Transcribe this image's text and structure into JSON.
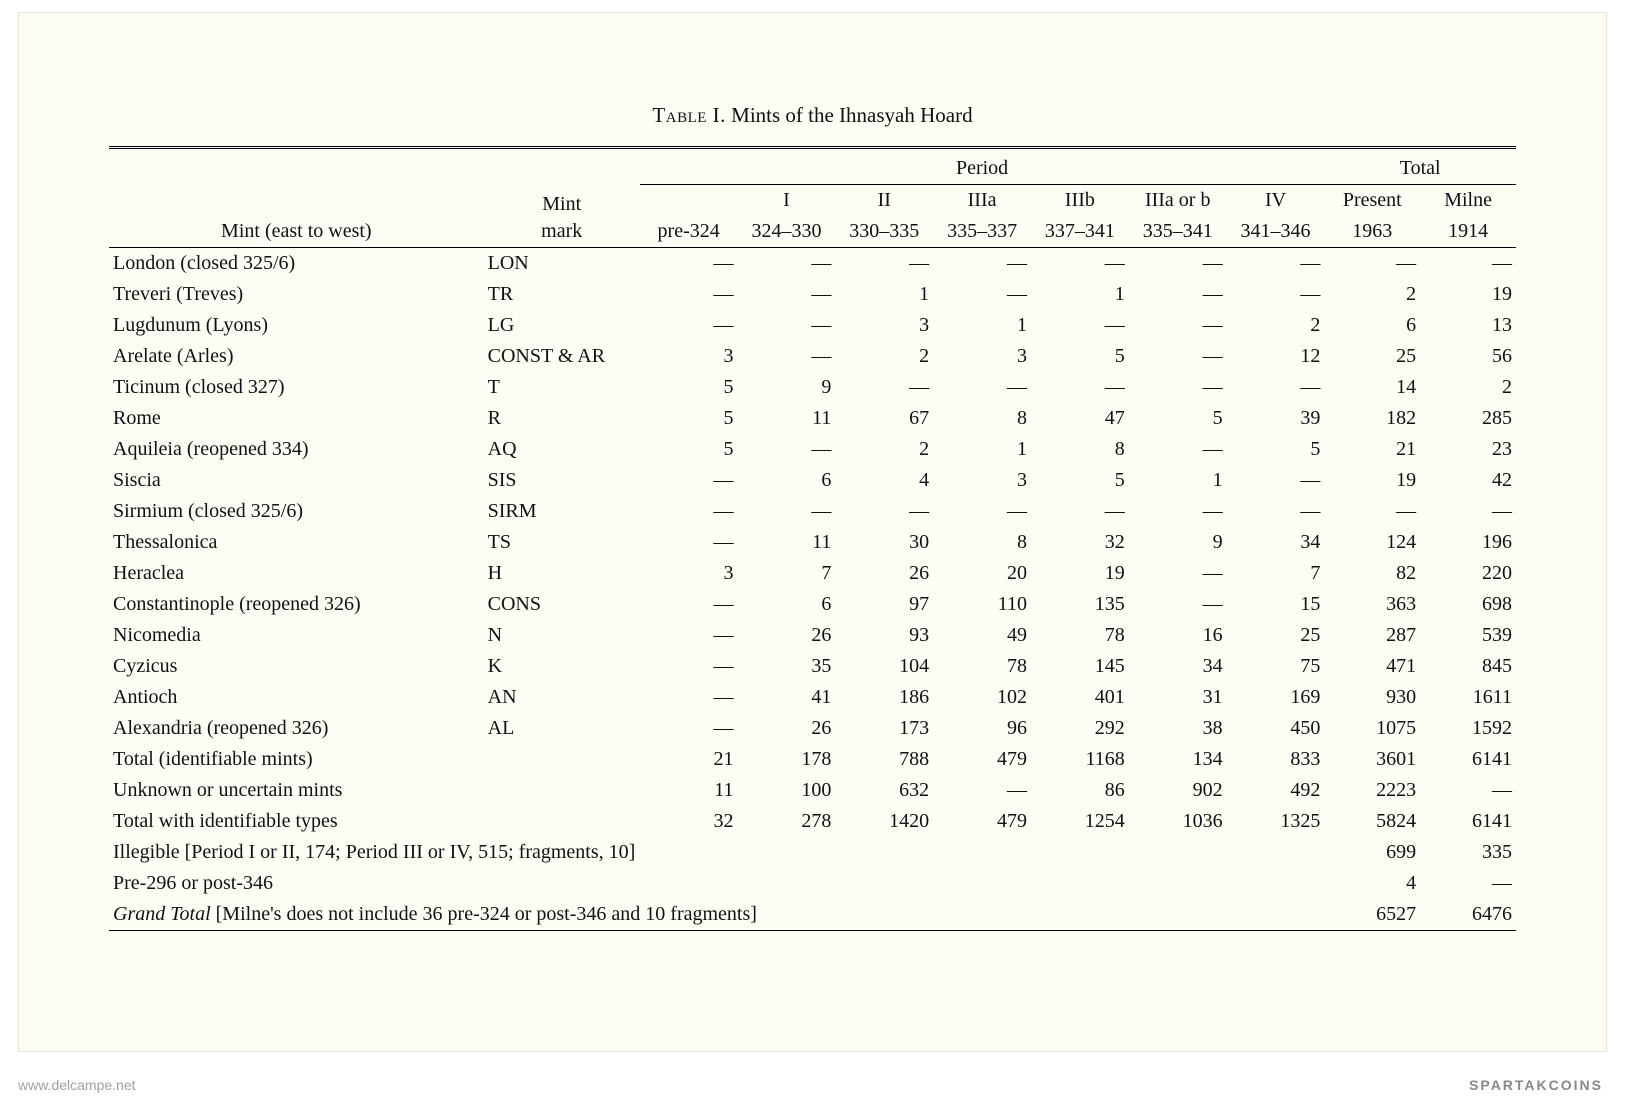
{
  "title_prefix": "Table I.",
  "title_rest": " Mints of the Ihnasyah Hoard",
  "header": {
    "mint_label": "Mint (east to west)",
    "mark_label_1": "Mint",
    "mark_label_2": "mark",
    "period_label": "Period",
    "total_label": "Total",
    "periods": {
      "p0": {
        "top": "",
        "bot": "pre-324"
      },
      "p1": {
        "top": "I",
        "bot": "324–330"
      },
      "p2": {
        "top": "II",
        "bot": "330–335"
      },
      "p3": {
        "top": "IIIa",
        "bot": "335–337"
      },
      "p4": {
        "top": "IIIb",
        "bot": "337–341"
      },
      "p5": {
        "top": "IIIa or b",
        "bot": "335–341"
      },
      "p6": {
        "top": "IV",
        "bot": "341–346"
      }
    },
    "totals": {
      "t1": {
        "top": "Present",
        "bot": "1963"
      },
      "t2": {
        "top": "Milne",
        "bot": "1914"
      }
    }
  },
  "rows": [
    {
      "mint": "London (closed 325/6)",
      "mark": "LON",
      "p0": "—",
      "p1": "—",
      "p2": "—",
      "p3": "—",
      "p4": "—",
      "p5": "—",
      "p6": "—",
      "t1": "—",
      "t2": "—"
    },
    {
      "mint": "Treveri (Treves)",
      "mark": "TR",
      "p0": "—",
      "p1": "—",
      "p2": "1",
      "p3": "—",
      "p4": "1",
      "p5": "—",
      "p6": "—",
      "t1": "2",
      "t2": "19"
    },
    {
      "mint": "Lugdunum (Lyons)",
      "mark": "LG",
      "p0": "—",
      "p1": "—",
      "p2": "3",
      "p3": "1",
      "p4": "—",
      "p5": "—",
      "p6": "2",
      "t1": "6",
      "t2": "13"
    },
    {
      "mint": "Arelate (Arles)",
      "mark": "CONST & AR",
      "p0": "3",
      "p1": "—",
      "p2": "2",
      "p3": "3",
      "p4": "5",
      "p5": "—",
      "p6": "12",
      "t1": "25",
      "t2": "56"
    },
    {
      "mint": "Ticinum (closed 327)",
      "mark": "T",
      "p0": "5",
      "p1": "9",
      "p2": "—",
      "p3": "—",
      "p4": "—",
      "p5": "—",
      "p6": "—",
      "t1": "14",
      "t2": "2"
    },
    {
      "mint": "Rome",
      "mark": "R",
      "p0": "5",
      "p1": "11",
      "p2": "67",
      "p3": "8",
      "p4": "47",
      "p5": "5",
      "p6": "39",
      "t1": "182",
      "t2": "285"
    },
    {
      "mint": "Aquileia (reopened 334)",
      "mark": "AQ",
      "p0": "5",
      "p1": "—",
      "p2": "2",
      "p3": "1",
      "p4": "8",
      "p5": "—",
      "p6": "5",
      "t1": "21",
      "t2": "23"
    },
    {
      "mint": "Siscia",
      "mark": "SIS",
      "p0": "—",
      "p1": "6",
      "p2": "4",
      "p3": "3",
      "p4": "5",
      "p5": "1",
      "p6": "—",
      "t1": "19",
      "t2": "42"
    },
    {
      "mint": "Sirmium (closed 325/6)",
      "mark": "SIRM",
      "p0": "—",
      "p1": "—",
      "p2": "—",
      "p3": "—",
      "p4": "—",
      "p5": "—",
      "p6": "—",
      "t1": "—",
      "t2": "—"
    },
    {
      "mint": "Thessalonica",
      "mark": "TS",
      "p0": "—",
      "p1": "11",
      "p2": "30",
      "p3": "8",
      "p4": "32",
      "p5": "9",
      "p6": "34",
      "t1": "124",
      "t2": "196"
    },
    {
      "mint": "Heraclea",
      "mark": "H",
      "p0": "3",
      "p1": "7",
      "p2": "26",
      "p3": "20",
      "p4": "19",
      "p5": "—",
      "p6": "7",
      "t1": "82",
      "t2": "220"
    },
    {
      "mint": "Constantinople (reopened 326)",
      "mark": "CONS",
      "p0": "—",
      "p1": "6",
      "p2": "97",
      "p3": "110",
      "p4": "135",
      "p5": "—",
      "p6": "15",
      "t1": "363",
      "t2": "698"
    },
    {
      "mint": "Nicomedia",
      "mark": "N",
      "p0": "—",
      "p1": "26",
      "p2": "93",
      "p3": "49",
      "p4": "78",
      "p5": "16",
      "p6": "25",
      "t1": "287",
      "t2": "539"
    },
    {
      "mint": "Cyzicus",
      "mark": "K",
      "p0": "—",
      "p1": "35",
      "p2": "104",
      "p3": "78",
      "p4": "145",
      "p5": "34",
      "p6": "75",
      "t1": "471",
      "t2": "845"
    },
    {
      "mint": "Antioch",
      "mark": "AN",
      "p0": "—",
      "p1": "41",
      "p2": "186",
      "p3": "102",
      "p4": "401",
      "p5": "31",
      "p6": "169",
      "t1": "930",
      "t2": "1611"
    },
    {
      "mint": "Alexandria (reopened 326)",
      "mark": "AL",
      "p0": "—",
      "p1": "26",
      "p2": "173",
      "p3": "96",
      "p4": "292",
      "p5": "38",
      "p6": "450",
      "t1": "1075",
      "t2": "1592"
    }
  ],
  "subtotals": [
    {
      "label": "Total (identifiable mints)",
      "p0": "21",
      "p1": "178",
      "p2": "788",
      "p3": "479",
      "p4": "1168",
      "p5": "134",
      "p6": "833",
      "t1": "3601",
      "t2": "6141"
    },
    {
      "label": "Unknown or uncertain mints",
      "p0": "11",
      "p1": "100",
      "p2": "632",
      "p3": "—",
      "p4": "86",
      "p5": "902",
      "p6": "492",
      "t1": "2223",
      "t2": "—"
    },
    {
      "label": "Total with identifiable types",
      "p0": "32",
      "p1": "278",
      "p2": "1420",
      "p3": "479",
      "p4": "1254",
      "p5": "1036",
      "p6": "1325",
      "t1": "5824",
      "t2": "6141"
    }
  ],
  "note_rows": [
    {
      "text": "Illegible [Period I or II, 174; Period III or IV, 515; fragments, 10]",
      "t1": "699",
      "t2": "335",
      "italic": false
    },
    {
      "text": "Pre-296 or post-346",
      "t1": "4",
      "t2": "—",
      "italic": false
    }
  ],
  "grand": {
    "label_italic": "Grand Total",
    "label_rest": " [Milne's does not include 36 pre-324 or post-346 and 10 fragments]",
    "t1": "6527",
    "t2": "6476"
  },
  "watermark": "www.delcampe.net",
  "brand": "SPARTAKCOINS",
  "style": {
    "background": "#ffffff",
    "paper_bg": "#fdfcf5",
    "text_color": "#111111",
    "rule_color": "#000000",
    "font_family": "Times New Roman",
    "title_fontsize_pt": 16,
    "body_fontsize_pt": 15
  }
}
